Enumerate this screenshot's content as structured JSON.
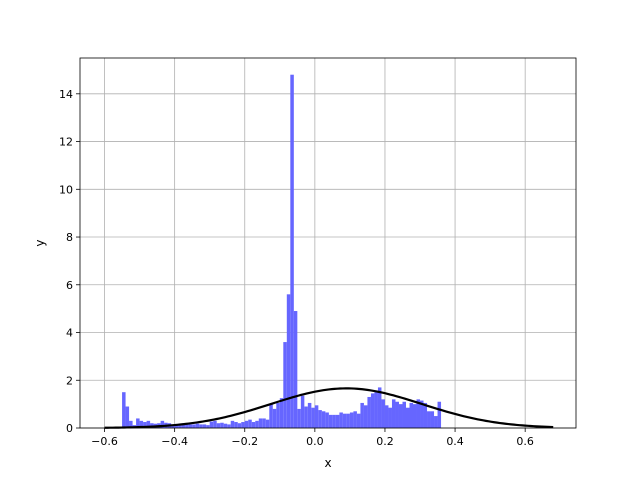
{
  "chart_data": {
    "type": "bar",
    "xlabel": "x",
    "ylabel": "y",
    "xlim": [
      -0.67,
      0.745
    ],
    "ylim": [
      0,
      15.5
    ],
    "grid": true,
    "xticks": [
      -0.6,
      -0.4,
      -0.2,
      0.0,
      0.2,
      0.4,
      0.6
    ],
    "xtick_labels": [
      "−0.6",
      "−0.4",
      "−0.2",
      "0.0",
      "0.2",
      "0.4",
      "0.6"
    ],
    "yticks": [
      0,
      2,
      4,
      6,
      8,
      10,
      12,
      14
    ],
    "ytick_labels": [
      "0",
      "2",
      "4",
      "6",
      "8",
      "10",
      "12",
      "14"
    ],
    "histogram": {
      "color": "#6666ff",
      "bin_width": 0.01,
      "bins": [
        [
          -0.545,
          1.5
        ],
        [
          -0.535,
          0.9
        ],
        [
          -0.525,
          0.3
        ],
        [
          -0.515,
          0.12
        ],
        [
          -0.505,
          0.4
        ],
        [
          -0.495,
          0.3
        ],
        [
          -0.485,
          0.25
        ],
        [
          -0.475,
          0.3
        ],
        [
          -0.465,
          0.2
        ],
        [
          -0.455,
          0.18
        ],
        [
          -0.445,
          0.2
        ],
        [
          -0.435,
          0.3
        ],
        [
          -0.425,
          0.22
        ],
        [
          -0.415,
          0.2
        ],
        [
          -0.405,
          0.15
        ],
        [
          -0.395,
          0.17
        ],
        [
          -0.385,
          0.15
        ],
        [
          -0.375,
          0.2
        ],
        [
          -0.365,
          0.18
        ],
        [
          -0.355,
          0.15
        ],
        [
          -0.345,
          0.15
        ],
        [
          -0.335,
          0.18
        ],
        [
          -0.325,
          0.15
        ],
        [
          -0.315,
          0.15
        ],
        [
          -0.305,
          0.12
        ],
        [
          -0.295,
          0.27
        ],
        [
          -0.285,
          0.3
        ],
        [
          -0.275,
          0.2
        ],
        [
          -0.265,
          0.22
        ],
        [
          -0.255,
          0.18
        ],
        [
          -0.245,
          0.15
        ],
        [
          -0.235,
          0.3
        ],
        [
          -0.225,
          0.25
        ],
        [
          -0.215,
          0.2
        ],
        [
          -0.205,
          0.25
        ],
        [
          -0.195,
          0.3
        ],
        [
          -0.185,
          0.35
        ],
        [
          -0.175,
          0.25
        ],
        [
          -0.165,
          0.3
        ],
        [
          -0.155,
          0.4
        ],
        [
          -0.145,
          0.4
        ],
        [
          -0.135,
          0.35
        ],
        [
          -0.125,
          1.0
        ],
        [
          -0.115,
          0.8
        ],
        [
          -0.105,
          1.05
        ],
        [
          -0.095,
          1.25
        ],
        [
          -0.085,
          3.6
        ],
        [
          -0.075,
          5.6
        ],
        [
          -0.065,
          14.8
        ],
        [
          -0.055,
          4.9
        ],
        [
          -0.045,
          0.8
        ],
        [
          -0.035,
          1.35
        ],
        [
          -0.025,
          0.9
        ],
        [
          -0.015,
          1.05
        ],
        [
          -0.005,
          0.85
        ],
        [
          0.005,
          0.95
        ],
        [
          0.015,
          0.75
        ],
        [
          0.025,
          0.7
        ],
        [
          0.035,
          0.65
        ],
        [
          0.045,
          0.55
        ],
        [
          0.055,
          0.55
        ],
        [
          0.065,
          0.55
        ],
        [
          0.075,
          0.65
        ],
        [
          0.085,
          0.6
        ],
        [
          0.095,
          0.6
        ],
        [
          0.105,
          0.65
        ],
        [
          0.115,
          0.7
        ],
        [
          0.125,
          0.6
        ],
        [
          0.135,
          1.05
        ],
        [
          0.145,
          0.95
        ],
        [
          0.155,
          1.3
        ],
        [
          0.165,
          1.45
        ],
        [
          0.175,
          1.55
        ],
        [
          0.185,
          1.7
        ],
        [
          0.195,
          1.2
        ],
        [
          0.205,
          0.95
        ],
        [
          0.215,
          0.85
        ],
        [
          0.225,
          1.2
        ],
        [
          0.235,
          1.1
        ],
        [
          0.245,
          1.0
        ],
        [
          0.255,
          1.1
        ],
        [
          0.265,
          0.85
        ],
        [
          0.275,
          1.05
        ],
        [
          0.285,
          1.0
        ],
        [
          0.295,
          1.2
        ],
        [
          0.305,
          1.15
        ],
        [
          0.315,
          1.05
        ],
        [
          0.325,
          0.7
        ],
        [
          0.335,
          0.7
        ],
        [
          0.345,
          0.5
        ],
        [
          0.355,
          1.1
        ]
      ]
    },
    "normal_curve": {
      "color": "#000000",
      "mean": 0.09,
      "std": 0.215,
      "peak": 1.66,
      "x_range": [
        -0.6,
        0.68
      ]
    }
  }
}
